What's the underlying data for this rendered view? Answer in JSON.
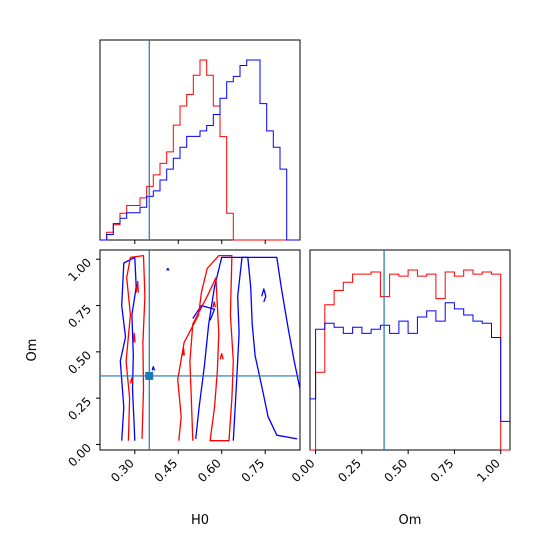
{
  "colors": {
    "red": "#ff0000",
    "blue": "#0000ff",
    "truth": "#1f77b4"
  },
  "chart_data": {
    "type": "corner",
    "parameters": [
      "H0",
      "Om"
    ],
    "truths": {
      "H0": 0.35,
      "Om": 0.37
    },
    "ranges": {
      "H0": [
        0.18,
        0.87
      ],
      "Om": [
        -0.03,
        1.05
      ]
    },
    "xlabels": {
      "H0": "H0",
      "Om": "Om"
    },
    "ylabels": {
      "Om": "Om"
    },
    "ticks": {
      "H0": {
        "values": [
          0.3,
          0.45,
          0.6,
          0.75
        ],
        "labels": [
          "0.30",
          "0.45",
          "0.60",
          "0.75"
        ]
      },
      "Om": {
        "values": [
          0.0,
          0.25,
          0.5,
          0.75,
          1.0
        ],
        "labels": [
          "0.00",
          "0.25",
          "0.50",
          "0.75",
          "1.00"
        ]
      }
    },
    "series": [
      {
        "color": "red",
        "hist_H0": {
          "edges": [
            0.18,
            0.203,
            0.226,
            0.249,
            0.272,
            0.295,
            0.318,
            0.341,
            0.364,
            0.387,
            0.41,
            0.433,
            0.456,
            0.479,
            0.502,
            0.525,
            0.548,
            0.571,
            0.594,
            0.617,
            0.64,
            0.87
          ],
          "counts": [
            0,
            2,
            4,
            7,
            9,
            9,
            11,
            14,
            17,
            20,
            23,
            30,
            35,
            38,
            43,
            47,
            43,
            35,
            27,
            7,
            0
          ]
        },
        "hist_Om": {
          "edges": [
            -0.03,
            0.0,
            0.05,
            0.1,
            0.15,
            0.2,
            0.25,
            0.3,
            0.35,
            0.4,
            0.45,
            0.5,
            0.55,
            0.6,
            0.65,
            0.7,
            0.75,
            0.8,
            0.85,
            0.9,
            0.95,
            1.0,
            1.05
          ],
          "counts": [
            0,
            38,
            71,
            78,
            82,
            86,
            86,
            87,
            75,
            86,
            85,
            88,
            85,
            86,
            74,
            87,
            85,
            88,
            86,
            87,
            86,
            0
          ]
        }
      },
      {
        "color": "blue",
        "hist_H0": {
          "edges": [
            0.18,
            0.203,
            0.226,
            0.249,
            0.272,
            0.295,
            0.318,
            0.341,
            0.364,
            0.387,
            0.41,
            0.433,
            0.456,
            0.479,
            0.502,
            0.525,
            0.548,
            0.571,
            0.594,
            0.617,
            0.64,
            0.663,
            0.686,
            0.709,
            0.732,
            0.755,
            0.778,
            0.801,
            0.824,
            0.87
          ],
          "counts": [
            0,
            1,
            3,
            4,
            5,
            5,
            6,
            8,
            9,
            11,
            13,
            15,
            17,
            19,
            19,
            20,
            21,
            23,
            26,
            29,
            30,
            32,
            33,
            33,
            25,
            20,
            17,
            13,
            0
          ]
        },
        "hist_Om": {
          "edges": [
            -0.03,
            0.0,
            0.05,
            0.1,
            0.15,
            0.2,
            0.25,
            0.3,
            0.35,
            0.4,
            0.45,
            0.5,
            0.55,
            0.6,
            0.65,
            0.7,
            0.75,
            0.8,
            0.85,
            0.9,
            0.95,
            1.0,
            1.05
          ],
          "counts": [
            25,
            59,
            62,
            60,
            57,
            60,
            57,
            59,
            61,
            57,
            63,
            57,
            65,
            68,
            63,
            72,
            69,
            66,
            63,
            62,
            55,
            14
          ]
        }
      }
    ]
  }
}
